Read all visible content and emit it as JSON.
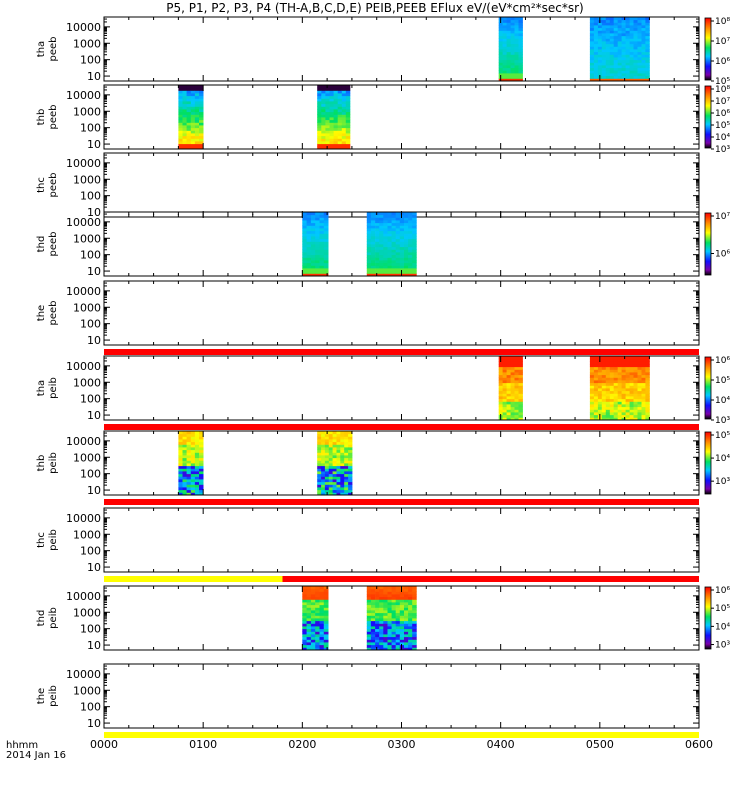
{
  "title": "P5, P1, P2, P3, P4 (TH-A,B,C,D,E) PEIB,PEEB EFlux eV/(eV*cm²*sec*sr)",
  "footer": {
    "time_format": "hhmm",
    "date": "2014 Jan 16"
  },
  "chart_data": {
    "type": "heatmap",
    "x_tick_labels": [
      "0000",
      "0100",
      "0200",
      "0300",
      "0400",
      "0500",
      "0600"
    ],
    "x_range_hours": [
      0,
      6
    ],
    "y_scale": "log",
    "y_tick_labels": [
      "10",
      "100",
      "1000",
      "10000"
    ],
    "panels": [
      {
        "label": "tha peeb",
        "yrange": [
          5,
          40000
        ],
        "blocks": [
          [
            3.98,
            4.22,
            "electron"
          ],
          [
            4.9,
            5.5,
            "electron2"
          ]
        ],
        "colorbar": [
          "10⁸",
          "10⁷",
          "10⁶",
          "10⁵"
        ],
        "cbexp": [
          8,
          5
        ]
      },
      {
        "label": "thb peeb",
        "yrange": [
          5,
          40000
        ],
        "blocks": [
          [
            0.75,
            1.0,
            "electron3"
          ],
          [
            2.15,
            2.48,
            "electron3"
          ]
        ],
        "colorbar": [
          "10⁸",
          "10⁷",
          "10⁶",
          "10⁵",
          "10⁴",
          "10³"
        ],
        "cbexp": [
          8,
          3
        ]
      },
      {
        "label": "thc peeb",
        "yrange": [
          5,
          40000
        ],
        "blocks": [],
        "colorbar": []
      },
      {
        "label": "thd peeb",
        "yrange": [
          5,
          40000
        ],
        "blocks": [
          [
            2.0,
            2.26,
            "electron"
          ],
          [
            2.65,
            3.15,
            "electron"
          ]
        ],
        "colorbar": [
          "10⁷",
          "10⁶"
        ],
        "cbexp": [
          7.4,
          5.8
        ]
      },
      {
        "label": "the peeb",
        "yrange": [
          5,
          40000
        ],
        "blocks": [],
        "colorbar": [],
        "flag": [
          [
            0,
            6,
            "red"
          ]
        ]
      },
      {
        "label": "tha peib",
        "yrange": [
          5,
          40000
        ],
        "blocks": [
          [
            3.98,
            4.22,
            "ion"
          ],
          [
            4.9,
            5.5,
            "ion"
          ]
        ],
        "colorbar": [
          "10⁶",
          "10⁵",
          "10⁴",
          "10³"
        ],
        "cbexp": [
          6,
          3
        ],
        "flag": [
          [
            0,
            6,
            "red"
          ]
        ]
      },
      {
        "label": "thb peib",
        "yrange": [
          5,
          40000
        ],
        "blocks": [
          [
            0.75,
            1.0,
            "ion2"
          ],
          [
            2.15,
            2.5,
            "ion2"
          ]
        ],
        "colorbar": [
          "10⁵",
          "10⁴",
          "10³"
        ],
        "cbexp": [
          5.3,
          2.7
        ],
        "flag": [
          [
            0,
            6,
            "red"
          ]
        ]
      },
      {
        "label": "thc peib",
        "yrange": [
          5,
          40000
        ],
        "blocks": [],
        "colorbar": [],
        "flag": [
          [
            0,
            1.8,
            "yellow"
          ],
          [
            1.8,
            6,
            "red"
          ]
        ]
      },
      {
        "label": "thd peib",
        "yrange": [
          5,
          40000
        ],
        "blocks": [
          [
            2.0,
            2.26,
            "ion3"
          ],
          [
            2.65,
            3.15,
            "ion3"
          ]
        ],
        "colorbar": [
          "10⁶",
          "10⁵",
          "10⁴",
          "10³"
        ],
        "cbexp": [
          6,
          2.7
        ]
      },
      {
        "label": "the peib",
        "yrange": [
          5,
          40000
        ],
        "blocks": [],
        "colorbar": [],
        "flag": [
          [
            0,
            6,
            "yellow"
          ]
        ]
      }
    ]
  }
}
